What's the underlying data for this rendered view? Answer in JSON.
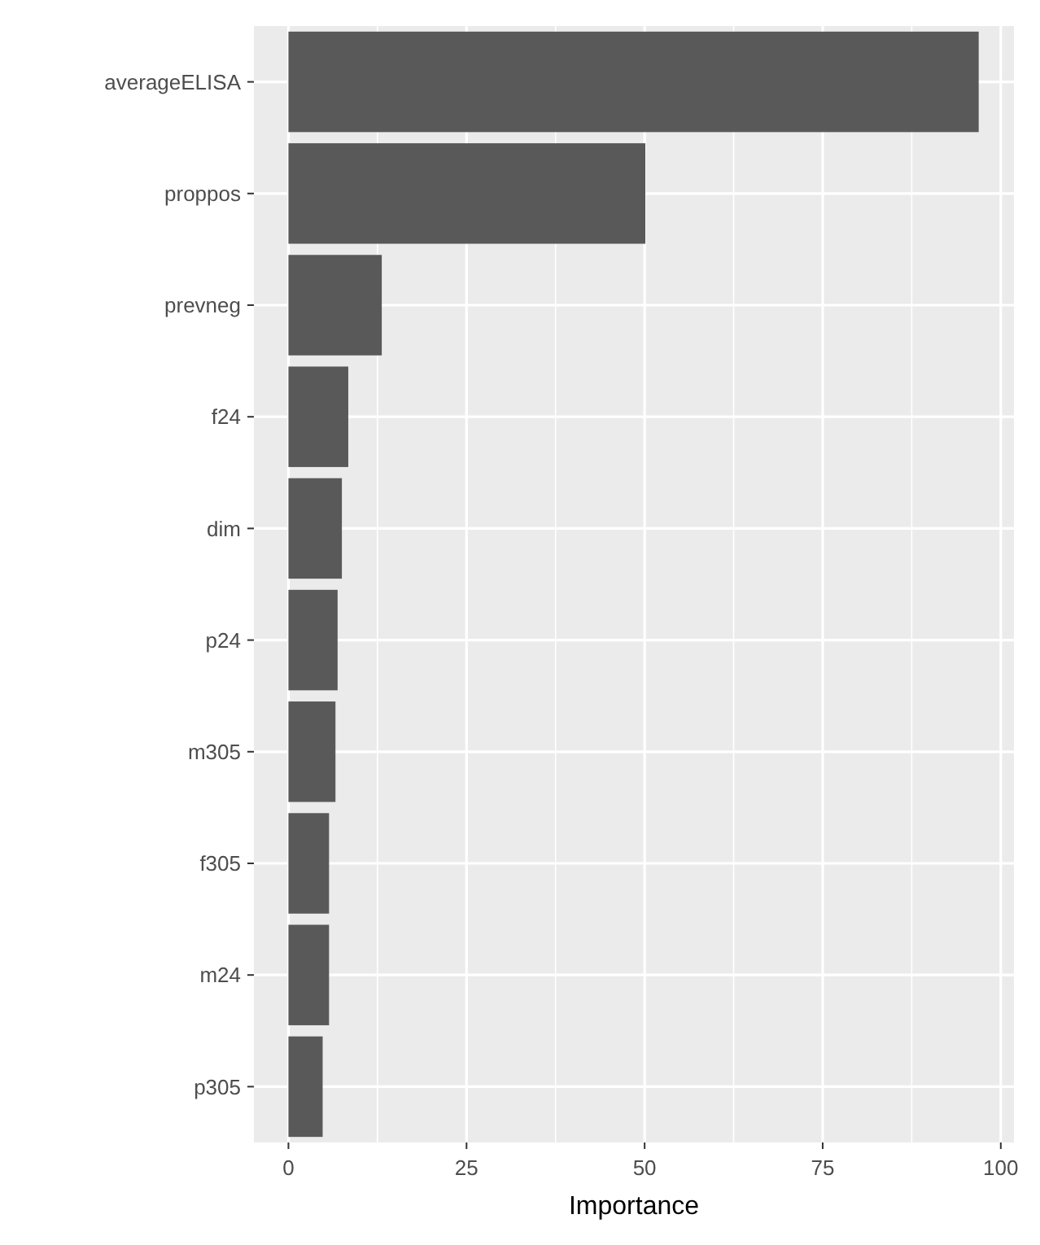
{
  "chart_data": {
    "type": "bar",
    "orientation": "horizontal",
    "xlabel": "Importance",
    "categories": [
      "averageELISA",
      "proppos",
      "prevneg",
      "f24",
      "dim",
      "p24",
      "m305",
      "f305",
      "m24",
      "p305"
    ],
    "values": [
      96.9,
      50.1,
      13.1,
      8.4,
      7.5,
      6.9,
      6.6,
      5.7,
      5.7,
      4.8
    ],
    "color": "#595959",
    "xlim": [
      -4.85,
      101.85
    ],
    "xticks": [
      0,
      25,
      50,
      75,
      100
    ],
    "grid": true
  }
}
